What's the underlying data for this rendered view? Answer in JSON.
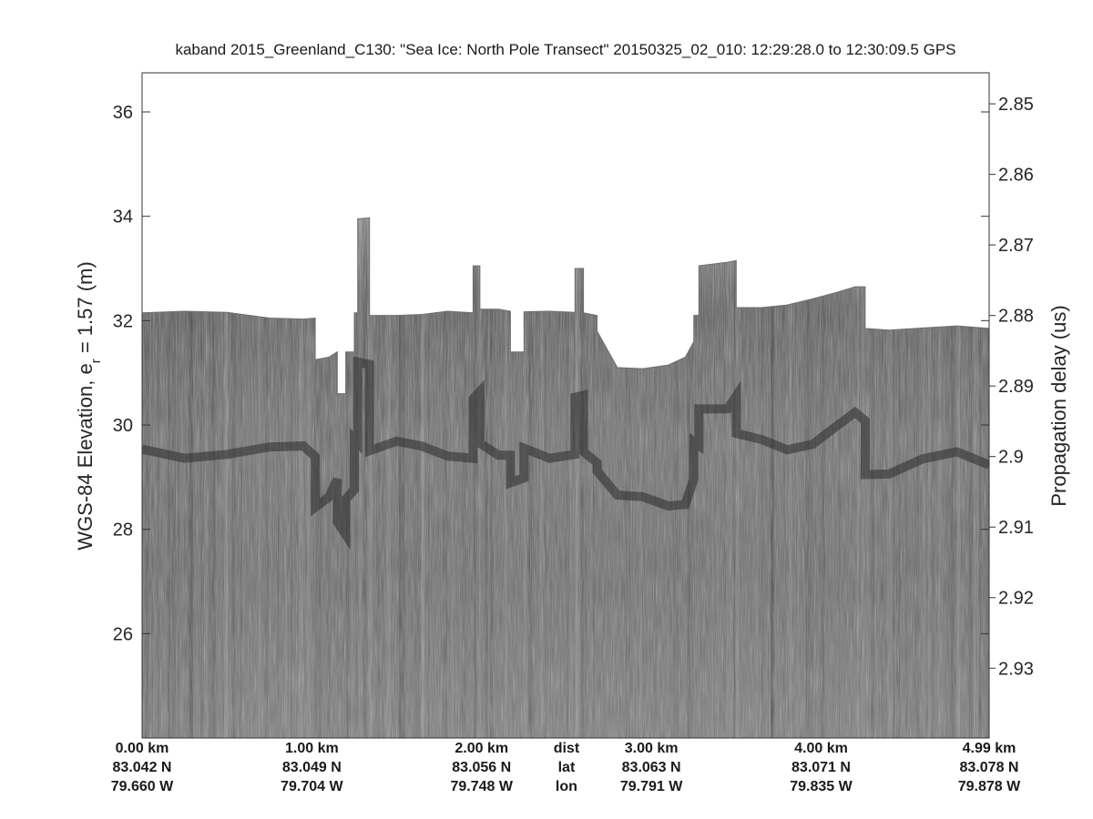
{
  "chart_data": {
    "type": "heatmap",
    "title": "kaband 2015_Greenland_C130: \"Sea Ice: North Pole Transect\"  20150325_02_010: 12:29:28.0 to 12:30:09.5 GPS",
    "ylabel_left_main": "WGS-84 Elevation, e",
    "ylabel_left_sub": "r",
    "ylabel_left_tail": " = 1.57 (m)",
    "ylabel_right": "Propagation delay (us)",
    "y_left_ticks": [
      "26",
      "28",
      "30",
      "32",
      "34",
      "36"
    ],
    "y_left_range": [
      24.0,
      36.75
    ],
    "y_right_ticks": [
      "2.85",
      "2.86",
      "2.87",
      "2.88",
      "2.89",
      "2.9",
      "2.91",
      "2.92",
      "2.93"
    ],
    "y_right_range": [
      2.8456,
      2.9399
    ],
    "x_range_km": [
      0,
      4.99
    ],
    "x_positions_km": [
      0,
      1,
      2,
      2.5,
      3,
      4,
      4.99
    ],
    "x_rows": [
      [
        "0.00 km",
        "1.00 km",
        "2.00 km",
        "dist",
        "3.00 km",
        "4.00 km",
        "4.99 km"
      ],
      [
        "83.042 N",
        "83.049 N",
        "83.056 N",
        "lat",
        "83.063 N",
        "83.071 N",
        "83.078 N"
      ],
      [
        "79.660 W",
        "79.704 W",
        "79.748 W",
        "lon",
        "79.791 W",
        "79.835 W",
        "79.878 W"
      ]
    ],
    "surface_profile_km_m": [
      [
        0.0,
        32.15
      ],
      [
        0.25,
        32.18
      ],
      [
        0.5,
        32.16
      ],
      [
        0.75,
        32.05
      ],
      [
        0.95,
        32.03
      ],
      [
        1.02,
        32.05
      ],
      [
        1.02,
        31.25
      ],
      [
        1.1,
        31.3
      ],
      [
        1.15,
        31.4
      ],
      [
        1.15,
        30.6
      ],
      [
        1.2,
        30.6
      ],
      [
        1.2,
        31.4
      ],
      [
        1.25,
        31.4
      ],
      [
        1.25,
        32.15
      ],
      [
        1.27,
        32.15
      ],
      [
        1.27,
        33.95
      ],
      [
        1.34,
        33.97
      ],
      [
        1.34,
        32.1
      ],
      [
        1.5,
        32.1
      ],
      [
        1.65,
        32.12
      ],
      [
        1.8,
        32.18
      ],
      [
        1.95,
        32.15
      ],
      [
        1.95,
        33.05
      ],
      [
        1.99,
        33.05
      ],
      [
        1.99,
        32.22
      ],
      [
        2.1,
        32.22
      ],
      [
        2.17,
        32.18
      ],
      [
        2.17,
        31.4
      ],
      [
        2.25,
        31.4
      ],
      [
        2.25,
        32.17
      ],
      [
        2.4,
        32.18
      ],
      [
        2.55,
        32.16
      ],
      [
        2.55,
        33.0
      ],
      [
        2.6,
        33.0
      ],
      [
        2.6,
        32.15
      ],
      [
        2.68,
        32.1
      ],
      [
        2.68,
        31.8
      ],
      [
        2.8,
        31.1
      ],
      [
        2.95,
        31.08
      ],
      [
        3.1,
        31.15
      ],
      [
        3.2,
        31.3
      ],
      [
        3.25,
        31.6
      ],
      [
        3.25,
        32.1
      ],
      [
        3.28,
        32.1
      ],
      [
        3.28,
        33.05
      ],
      [
        3.45,
        33.12
      ],
      [
        3.5,
        33.15
      ],
      [
        3.5,
        32.25
      ],
      [
        3.65,
        32.25
      ],
      [
        3.8,
        32.3
      ],
      [
        3.95,
        32.42
      ],
      [
        4.1,
        32.55
      ],
      [
        4.2,
        32.65
      ],
      [
        4.26,
        32.65
      ],
      [
        4.26,
        31.85
      ],
      [
        4.4,
        31.82
      ],
      [
        4.6,
        31.86
      ],
      [
        4.8,
        31.9
      ],
      [
        4.99,
        31.85
      ]
    ]
  }
}
